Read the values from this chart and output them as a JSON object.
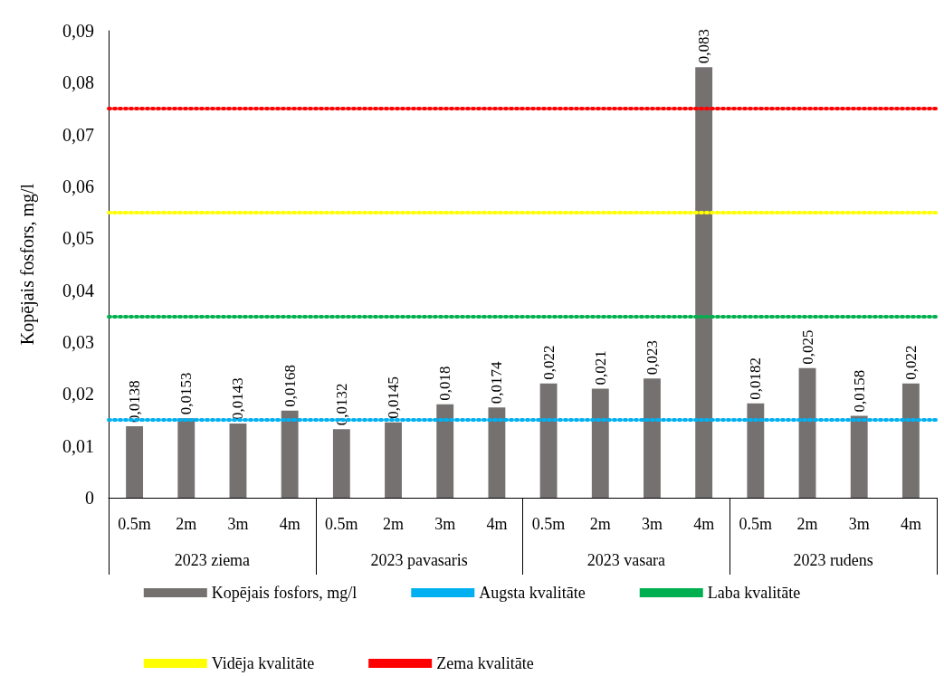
{
  "chart_data": {
    "type": "bar",
    "ylabel": "Kopējais fosfors, mg/l",
    "categories": [
      "0.5m",
      "2m",
      "3m",
      "4m",
      "0.5m",
      "2m",
      "3m",
      "4m",
      "0.5m",
      "2m",
      "3m",
      "4m",
      "0.5m",
      "2m",
      "3m",
      "4m"
    ],
    "annotations": [
      "2023 ziema",
      "2023 pavasaris",
      "2023 vasara",
      "2023 rudens"
    ],
    "series": [
      {
        "name": "Kopējais fosfors, mg/l",
        "color": "#767171",
        "values": [
          0.0138,
          0.0153,
          0.0143,
          0.0168,
          0.0132,
          0.0145,
          0.018,
          0.0174,
          0.022,
          0.021,
          0.023,
          0.083,
          0.0182,
          0.025,
          0.0158,
          0.022
        ],
        "value_labels": [
          "0,0138",
          "0,0153",
          "0,0143",
          "0,0168",
          "0,0132",
          "0,0145",
          "0,018",
          "0,0174",
          "0,022",
          "0,021",
          "0,023",
          "0,083",
          "0,0182",
          "0,025",
          "0,0158",
          "0,022"
        ]
      }
    ],
    "ref_lines": [
      {
        "axis": "y",
        "value": 0.015,
        "label": "Augsta kvalitāte",
        "color": "#00b0f0",
        "line_style": "dotted"
      },
      {
        "axis": "y",
        "value": 0.035,
        "label": "Laba kvalitāte",
        "color": "#00b050",
        "line_style": "dotted"
      },
      {
        "axis": "y",
        "value": 0.055,
        "label": "Vidēja kvalitāte",
        "color": "#ffff00",
        "line_style": "dotted"
      },
      {
        "axis": "y",
        "value": 0.075,
        "label": "Zema kvalitāte",
        "color": "#ff0000",
        "line_style": "dotted"
      }
    ],
    "ylim": [
      0,
      0.09
    ],
    "yticks": [
      0,
      {
        "value": 0.01,
        "label": "0,01"
      },
      {
        "value": 0.02,
        "label": "0,02"
      },
      {
        "value": 0.03,
        "label": "0,03"
      },
      {
        "value": 0.04,
        "label": "0,04"
      },
      {
        "value": 0.05,
        "label": "0,05"
      },
      {
        "value": 0.06,
        "label": "0,06"
      },
      {
        "value": 0.07,
        "label": "0,07"
      },
      {
        "value": 0.08,
        "label": "0,08"
      },
      {
        "value": 0.09,
        "label": "0,09"
      }
    ],
    "grid": false,
    "legend": "bottom"
  }
}
